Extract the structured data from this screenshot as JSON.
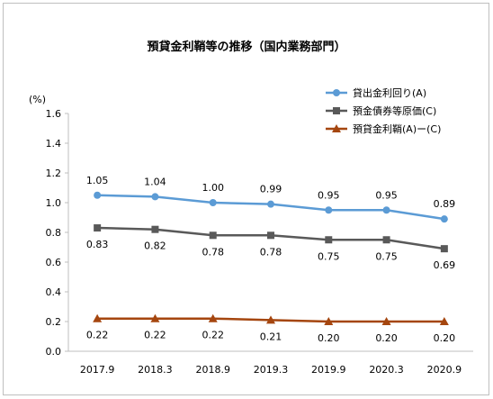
{
  "chart_data": {
    "type": "line",
    "title": "預貸金利鞘等の推移（国内業務部門）",
    "ylabel": "(%)",
    "xlabel": "",
    "categories": [
      "2017.9",
      "2018.3",
      "2018.9",
      "2019.3",
      "2019.9",
      "2020.3",
      "2020.9"
    ],
    "ylim": [
      0.0,
      1.6
    ],
    "yticks": [
      "0.0",
      "0.2",
      "0.4",
      "0.6",
      "0.8",
      "1.0",
      "1.2",
      "1.4",
      "1.6"
    ],
    "grid": false,
    "legend_position": "top-right",
    "series": [
      {
        "name": "貸出金利回り(A)",
        "values": [
          1.05,
          1.04,
          1.0,
          0.99,
          0.95,
          0.95,
          0.89
        ],
        "labels": [
          "1.05",
          "1.04",
          "1.00",
          "0.99",
          "0.95",
          "0.95",
          "0.89"
        ],
        "color": "#5b9bd5",
        "marker": "circle",
        "label_position": "above"
      },
      {
        "name": "預金債券等原価(C)",
        "values": [
          0.83,
          0.82,
          0.78,
          0.78,
          0.75,
          0.75,
          0.69
        ],
        "labels": [
          "0.83",
          "0.82",
          "0.78",
          "0.78",
          "0.75",
          "0.75",
          "0.69"
        ],
        "color": "#595959",
        "marker": "square",
        "label_position": "below"
      },
      {
        "name": "預貸金利鞘(A)ー(C)",
        "values": [
          0.22,
          0.22,
          0.22,
          0.21,
          0.2,
          0.2,
          0.2
        ],
        "labels": [
          "0.22",
          "0.22",
          "0.22",
          "0.21",
          "0.20",
          "0.20",
          "0.20"
        ],
        "color": "#a5460f",
        "marker": "triangle",
        "label_position": "below"
      }
    ]
  }
}
